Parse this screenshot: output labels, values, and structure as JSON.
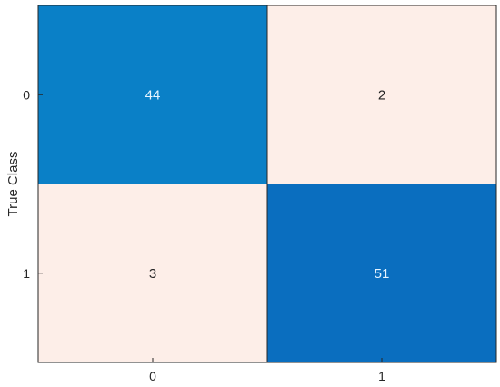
{
  "chart_data": {
    "type": "heatmap",
    "title": "",
    "xlabel": "",
    "ylabel": "True Class",
    "x_categories": [
      "0",
      "1"
    ],
    "y_categories": [
      "0",
      "1"
    ],
    "values": [
      [
        44,
        2
      ],
      [
        3,
        51
      ]
    ],
    "colors": {
      "high_0": "#0a80c7",
      "high_1": "#0a6ebf",
      "low": "#fdeee8",
      "text_on_dark": "#e6f4ff",
      "text_on_light": "#222222",
      "grid_line": "#262626"
    }
  }
}
